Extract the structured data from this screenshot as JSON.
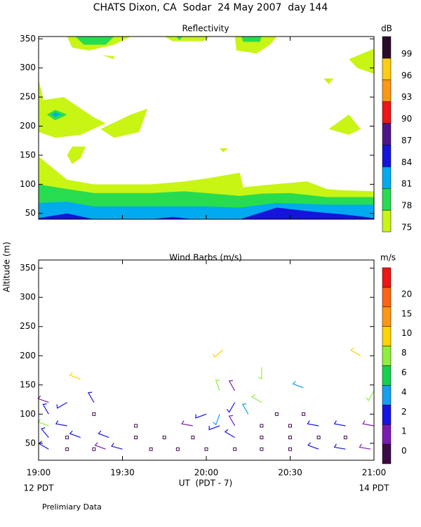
{
  "title": "CHATS Dixon, CA  Sodar  24 May 2007  day 144",
  "y_axis_label": "Altitude (m)",
  "x_axis_label": "UT  (PDT - 7)",
  "x_start_label": "12 PDT",
  "x_end_label": "14 PDT",
  "footnote": "Prelimiary Data",
  "chart_data": [
    {
      "type": "contour",
      "title": "Reflectivity",
      "colorbar_title": "dB",
      "ylim": [
        40,
        354
      ],
      "yticks": [
        50,
        100,
        150,
        200,
        250,
        300,
        350
      ],
      "xlim": [
        19,
        21
      ],
      "colorbar": {
        "levels": [
          75,
          78,
          81,
          84,
          87,
          90,
          93,
          96,
          99
        ],
        "colors": [
          "#c8f514",
          "#28dc50",
          "#00aaf0",
          "#1414dc",
          "#50148c",
          "#f01414",
          "#ff9614",
          "#ffcc14",
          "#2a0a2a"
        ]
      },
      "regions": [
        {
          "level": 75,
          "x": [
            19,
            19,
            19.17,
            19.33,
            19.67,
            19.87,
            20,
            20.2,
            20.22,
            20.4,
            20.6,
            20.72,
            20.8,
            21,
            21
          ],
          "y": [
            40,
            148,
            108,
            100,
            100,
            105,
            110,
            120,
            95,
            100,
            105,
            92,
            90,
            88,
            40
          ]
        },
        {
          "level": 78,
          "x": [
            19,
            19,
            19.17,
            19.33,
            19.67,
            19.87,
            20,
            20.2,
            20.33,
            20.5,
            20.72,
            21,
            21
          ],
          "y": [
            40,
            100,
            92,
            85,
            85,
            88,
            85,
            80,
            84,
            85,
            78,
            78,
            40
          ]
        },
        {
          "level": 81,
          "x": [
            19,
            19,
            19.17,
            19.33,
            20,
            20.2,
            20.42,
            20.72,
            21,
            21
          ],
          "y": [
            40,
            68,
            70,
            62,
            62,
            60,
            68,
            65,
            65,
            40
          ]
        },
        {
          "level": 84,
          "x": [
            19,
            19,
            19.17,
            19.33,
            19.67,
            19.8,
            19.92,
            20.2,
            20.42,
            20.67,
            20.83,
            21,
            21
          ],
          "y": [
            40,
            42,
            50,
            40,
            40,
            44,
            40,
            40,
            60,
            52,
            48,
            42,
            40
          ]
        },
        {
          "level": 75,
          "x": [
            19,
            19.03,
            19.15,
            19.33,
            19.4,
            19.25,
            19.1,
            19
          ],
          "y": [
            280,
            245,
            250,
            215,
            205,
            185,
            180,
            190
          ]
        },
        {
          "level": 78,
          "x": [
            19.05,
            19.1,
            19.17,
            19.1
          ],
          "y": [
            220,
            228,
            220,
            210
          ]
        },
        {
          "level": 81,
          "x": [
            19.08,
            19.1,
            19.13,
            19.1
          ],
          "y": [
            220,
            224,
            220,
            216
          ]
        },
        {
          "level": 75,
          "x": [
            19.17,
            19.2,
            19.3,
            19.45,
            19.55
          ],
          "y": [
            354,
            335,
            330,
            340,
            354
          ]
        },
        {
          "level": 78,
          "x": [
            19.22,
            19.27,
            19.4,
            19.45
          ],
          "y": [
            354,
            340,
            340,
            354
          ]
        },
        {
          "level": 75,
          "x": [
            19.38,
            19.45,
            19.45
          ],
          "y": [
            322,
            320,
            315
          ]
        },
        {
          "level": 75,
          "x": [
            19.75,
            19.8,
            19.98,
            20.02
          ],
          "y": [
            354,
            346,
            346,
            354
          ]
        },
        {
          "level": 78,
          "x": [
            19.82,
            19.84,
            19.86
          ],
          "y": [
            354,
            348,
            354
          ]
        },
        {
          "level": 75,
          "x": [
            20.17,
            20.18,
            20.3,
            20.38,
            20.42
          ],
          "y": [
            354,
            330,
            325,
            340,
            354
          ]
        },
        {
          "level": 78,
          "x": [
            20.21,
            20.22,
            20.32,
            20.33
          ],
          "y": [
            354,
            345,
            345,
            354
          ]
        },
        {
          "level": 75,
          "x": [
            20.85,
            21,
            21,
            20.9
          ],
          "y": [
            315,
            333,
            290,
            300
          ]
        },
        {
          "level": 75,
          "x": [
            19.37,
            19.55,
            19.65,
            19.6,
            19.45
          ],
          "y": [
            195,
            220,
            230,
            190,
            180
          ]
        },
        {
          "level": 75,
          "x": [
            19.17,
            19.2,
            19.28,
            19.25,
            19.2
          ],
          "y": [
            150,
            165,
            165,
            145,
            135
          ]
        },
        {
          "level": 75,
          "x": [
            20.08,
            20.13,
            20.1
          ],
          "y": [
            162,
            162,
            155
          ]
        },
        {
          "level": 75,
          "x": [
            20.7,
            20.76,
            20.73
          ],
          "y": [
            282,
            282,
            272
          ]
        },
        {
          "level": 75,
          "x": [
            20.73,
            20.85,
            20.92,
            20.85
          ],
          "y": [
            195,
            220,
            195,
            185
          ]
        }
      ]
    },
    {
      "type": "barbs",
      "title": "Wind Barbs (m/s)",
      "colorbar_title": "m/s",
      "ylim": [
        21,
        364
      ],
      "yticks": [
        50,
        100,
        150,
        200,
        250,
        300,
        350
      ],
      "xlim": [
        19,
        21
      ],
      "xticks": [
        {
          "value": 19,
          "label": "19:00"
        },
        {
          "value": 19.5,
          "label": "19:30"
        },
        {
          "value": 20,
          "label": "20:00"
        },
        {
          "value": 20.5,
          "label": "20:30"
        },
        {
          "value": 21,
          "label": "21:00"
        }
      ],
      "colorbar": {
        "levels": [
          0,
          1,
          2,
          4,
          6,
          8,
          10,
          15,
          20
        ],
        "colors": [
          "#3c0a46",
          "#7a1ab4",
          "#1414e6",
          "#14a0f0",
          "#14d250",
          "#8cf03c",
          "#ffd200",
          "#ff9614",
          "#ff6414",
          "#f01414"
        ]
      },
      "barbs": {
        "x": [
          19.06,
          19.17,
          19.33,
          19.4,
          19.5,
          19.67,
          19.83,
          20,
          20.17,
          20.33,
          20.5,
          20.67,
          20.83,
          20.98,
          19.06,
          19.17,
          19.25,
          19.42,
          19.58,
          19.75,
          19.92,
          20.17,
          20.33,
          20.5,
          20.67,
          20.83,
          19.06,
          19.17,
          19.58,
          19.92,
          20.08,
          20.17,
          20.33,
          20.5,
          20.67,
          20.83,
          21,
          19.06,
          19.33,
          20,
          20.08,
          20.25,
          20.42,
          20.58,
          19.06,
          19.17,
          19.33,
          20.17,
          20.33,
          20.17,
          20.08,
          20.58,
          21,
          19.25,
          20.33,
          20.1,
          20.92
        ],
        "y": [
          40,
          40,
          40,
          40,
          40,
          40,
          40,
          40,
          40,
          40,
          40,
          40,
          40,
          40,
          60,
          60,
          60,
          60,
          60,
          60,
          60,
          60,
          60,
          60,
          60,
          60,
          80,
          80,
          80,
          80,
          80,
          80,
          80,
          80,
          80,
          80,
          80,
          100,
          100,
          100,
          100,
          100,
          100,
          100,
          120,
          120,
          120,
          120,
          120,
          140,
          140,
          145,
          140,
          160,
          180,
          210,
          200
        ],
        "speed": [
          2.5,
          0.5,
          0.5,
          1.5,
          2.5,
          0.5,
          0.5,
          0.5,
          0.5,
          0.5,
          0.5,
          2.5,
          2.5,
          1.5,
          2.5,
          0.5,
          3,
          2.5,
          0.5,
          0.5,
          0.5,
          3,
          0.5,
          0.5,
          0.5,
          0.5,
          8,
          2.5,
          0.5,
          1.5,
          3,
          1.5,
          0.5,
          0.5,
          3,
          2.5,
          1.5,
          2.5,
          0.5,
          3,
          4,
          5,
          0.5,
          0.5,
          1.5,
          2.5,
          2.5,
          3,
          8,
          1.5,
          9,
          5,
          9,
          12,
          9,
          14,
          10
        ],
        "direction": [
          300,
          0,
          0,
          290,
          285,
          0,
          0,
          0,
          0,
          0,
          0,
          290,
          280,
          280,
          320,
          0,
          290,
          290,
          0,
          0,
          0,
          300,
          0,
          0,
          0,
          0,
          290,
          280,
          0,
          280,
          250,
          330,
          0,
          0,
          280,
          280,
          280,
          330,
          0,
          250,
          200,
          330,
          0,
          0,
          290,
          240,
          330,
          210,
          300,
          330,
          340,
          290,
          210,
          290,
          180,
          230,
          300
        ]
      }
    }
  ]
}
